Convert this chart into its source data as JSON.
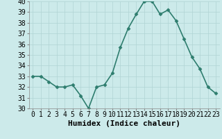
{
  "x": [
    0,
    1,
    2,
    3,
    4,
    5,
    6,
    7,
    8,
    9,
    10,
    11,
    12,
    13,
    14,
    15,
    16,
    17,
    18,
    19,
    20,
    21,
    22,
    23
  ],
  "y": [
    33,
    33,
    32.5,
    32,
    32,
    32.2,
    31.2,
    30,
    32,
    32.2,
    33.3,
    35.7,
    37.5,
    38.8,
    40,
    40,
    38.8,
    39.2,
    38.2,
    36.5,
    34.8,
    33.7,
    32,
    31.4
  ],
  "line_color": "#2e7d6e",
  "marker": "D",
  "marker_size": 2.5,
  "bg_color": "#cceaea",
  "grid_color": "#b0d4d4",
  "xlabel": "Humidex (Indice chaleur)",
  "xlim": [
    -0.5,
    23.5
  ],
  "ylim": [
    30,
    40
  ],
  "yticks": [
    30,
    31,
    32,
    33,
    34,
    35,
    36,
    37,
    38,
    39,
    40
  ],
  "xtick_labels": [
    "0",
    "1",
    "2",
    "3",
    "4",
    "5",
    "6",
    "7",
    "8",
    "9",
    "10",
    "11",
    "12",
    "13",
    "14",
    "15",
    "16",
    "17",
    "18",
    "19",
    "20",
    "21",
    "22",
    "23"
  ],
  "xlabel_fontsize": 8,
  "tick_fontsize": 7,
  "line_width": 1.2
}
